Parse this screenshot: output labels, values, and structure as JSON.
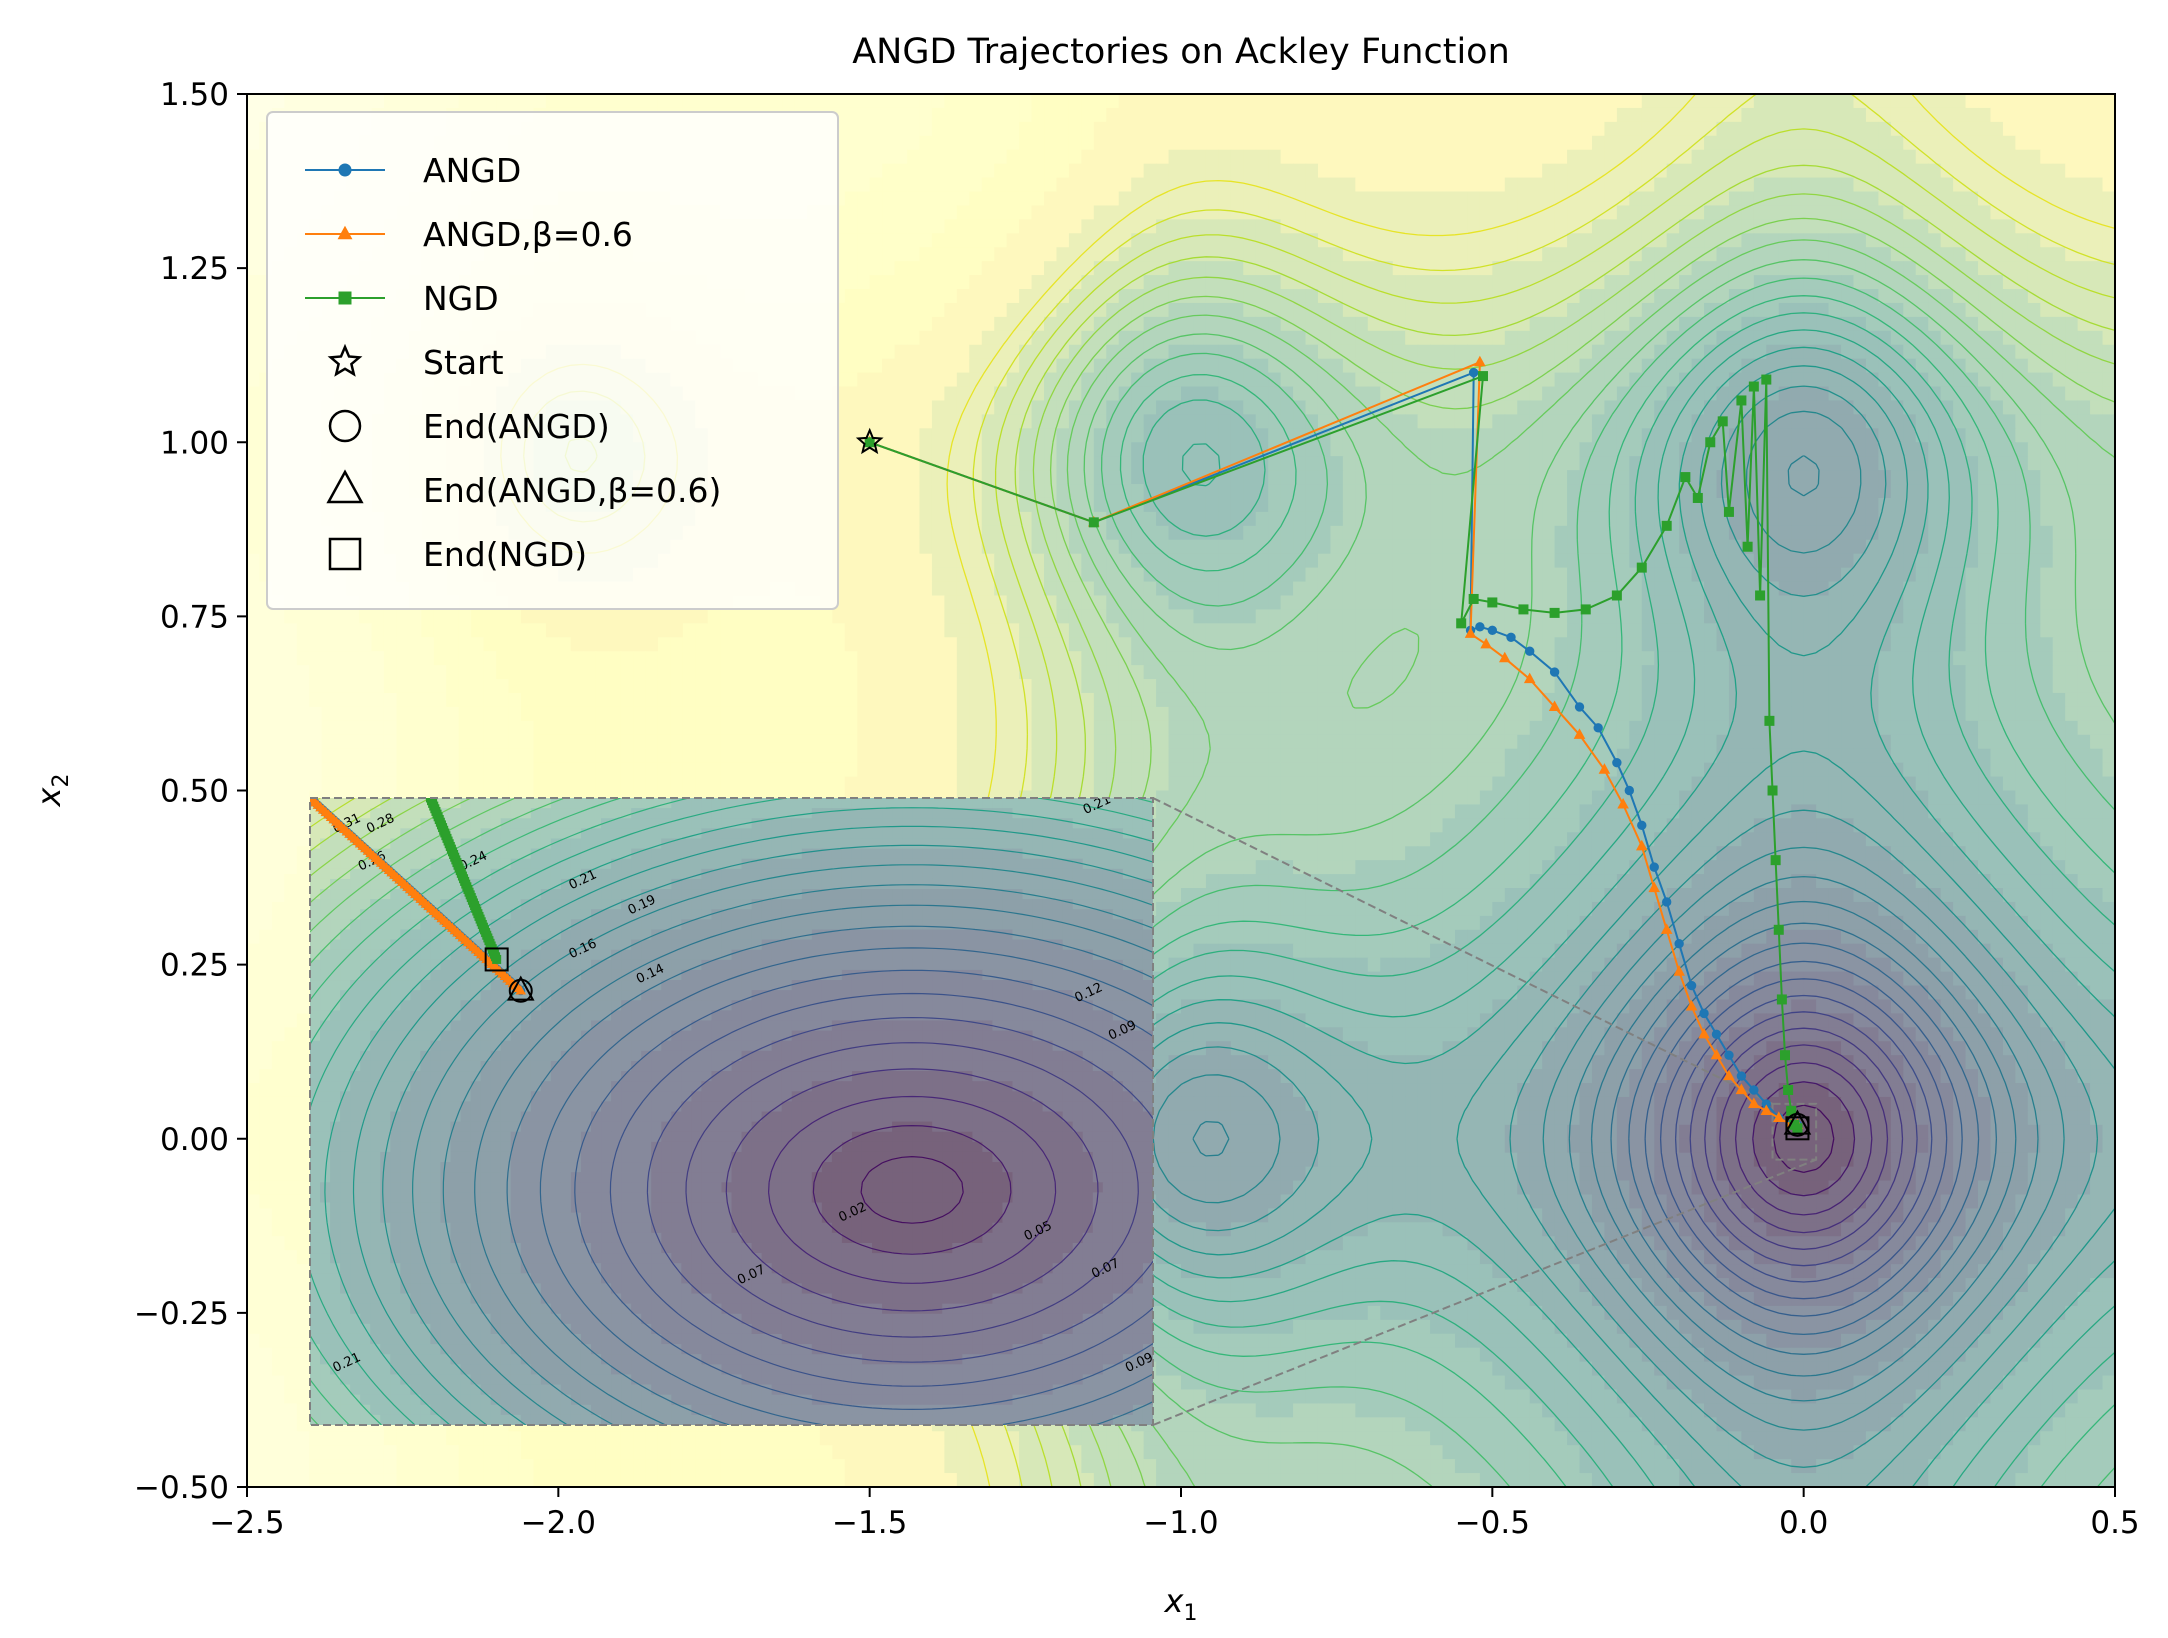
{
  "chart_data": {
    "type": "line",
    "title": "ANGD Trajectories on Ackley Function",
    "xlabel": "x",
    "xlabel_sub": "1",
    "ylabel": "x",
    "ylabel_sub": "2",
    "xlim": [
      -2.5,
      0.5
    ],
    "ylim": [
      -0.5,
      1.5
    ],
    "xticks": [
      -2.5,
      -2.0,
      -1.5,
      -1.0,
      -0.5,
      0.0,
      0.5
    ],
    "xtick_labels": [
      "−2.5",
      "−2.0",
      "−1.5",
      "−1.0",
      "−0.5",
      "0.0",
      "0.5"
    ],
    "yticks": [
      -0.5,
      -0.25,
      0.0,
      0.25,
      0.5,
      0.75,
      1.0,
      1.25,
      1.5
    ],
    "ytick_labels": [
      "−0.50",
      "−0.25",
      "0.00",
      "0.25",
      "0.50",
      "0.75",
      "1.00",
      "1.25",
      "1.50"
    ],
    "background": "Ackley function filled contours (viridis, alpha)",
    "series": [
      {
        "name": "ANGD",
        "color": "#1f77b4",
        "marker": "circle",
        "x": [
          -1.5,
          -1.14,
          -0.53,
          -0.535,
          -0.52,
          -0.5,
          -0.47,
          -0.44,
          -0.4,
          -0.36,
          -0.33,
          -0.3,
          -0.28,
          -0.26,
          -0.24,
          -0.22,
          -0.2,
          -0.18,
          -0.16,
          -0.14,
          -0.12,
          -0.1,
          -0.08,
          -0.06,
          -0.04,
          -0.02,
          -0.01
        ],
        "y": [
          1.0,
          0.885,
          1.1,
          0.73,
          0.735,
          0.73,
          0.72,
          0.7,
          0.67,
          0.62,
          0.59,
          0.54,
          0.5,
          0.45,
          0.39,
          0.34,
          0.28,
          0.22,
          0.18,
          0.15,
          0.12,
          0.09,
          0.07,
          0.05,
          0.03,
          0.02,
          0.02
        ]
      },
      {
        "name": "ANGD,β=0.6",
        "color": "#ff7f0e",
        "marker": "triangle",
        "x": [
          -1.5,
          -1.14,
          -0.52,
          -0.535,
          -0.51,
          -0.48,
          -0.44,
          -0.4,
          -0.36,
          -0.32,
          -0.29,
          -0.26,
          -0.24,
          -0.22,
          -0.2,
          -0.18,
          -0.16,
          -0.14,
          -0.12,
          -0.1,
          -0.08,
          -0.06,
          -0.04,
          -0.02,
          -0.01
        ],
        "y": [
          1.0,
          0.885,
          1.115,
          0.725,
          0.71,
          0.69,
          0.66,
          0.62,
          0.58,
          0.53,
          0.48,
          0.42,
          0.36,
          0.3,
          0.24,
          0.19,
          0.15,
          0.12,
          0.09,
          0.07,
          0.05,
          0.04,
          0.03,
          0.02,
          0.02
        ]
      },
      {
        "name": "NGD",
        "color": "#2ca02c",
        "marker": "square",
        "x": [
          -1.5,
          -1.14,
          -0.515,
          -0.55,
          -0.53,
          -0.5,
          -0.45,
          -0.4,
          -0.35,
          -0.3,
          -0.26,
          -0.22,
          -0.19,
          -0.17,
          -0.15,
          -0.13,
          -0.12,
          -0.1,
          -0.09,
          -0.08,
          -0.07,
          -0.06,
          -0.055,
          -0.05,
          -0.045,
          -0.04,
          -0.035,
          -0.03,
          -0.025,
          -0.02,
          -0.015,
          -0.01
        ],
        "y": [
          1.0,
          0.885,
          1.095,
          0.74,
          0.775,
          0.77,
          0.76,
          0.755,
          0.76,
          0.78,
          0.82,
          0.88,
          0.95,
          0.92,
          1.0,
          1.03,
          0.9,
          1.06,
          0.85,
          1.08,
          0.78,
          1.09,
          0.6,
          0.5,
          0.4,
          0.3,
          0.2,
          0.12,
          0.07,
          0.04,
          0.02,
          0.015
        ]
      }
    ],
    "start": {
      "name": "Start",
      "x": -1.5,
      "y": 1.0
    },
    "ends": [
      {
        "name": "End(ANGD)",
        "marker": "circle",
        "x": -0.01,
        "y": 0.02
      },
      {
        "name": "End(ANGD,β=0.6)",
        "marker": "triangle",
        "x": -0.01,
        "y": 0.02
      },
      {
        "name": "End(NGD)",
        "marker": "square",
        "x": -0.01,
        "y": 0.015
      }
    ],
    "legend": {
      "placement": "upper-left",
      "entries": [
        "ANGD",
        "ANGD,β=0.6",
        "NGD",
        "Start",
        "End(ANGD)",
        "End(ANGD,β=0.6)",
        "End(NGD)"
      ]
    },
    "inset": {
      "placement": "lower-left",
      "zoom_region": {
        "xlim": [
          -0.05,
          0.02
        ],
        "ylim": [
          -0.03,
          0.05
        ]
      },
      "contour_labels": [
        "0.31",
        "0.28",
        "0.26",
        "0.24",
        "0.21",
        "0.19",
        "0.16",
        "0.14",
        "0.12",
        "0.09",
        "0.21",
        "0.02",
        "0.05",
        "0.07",
        "0.07",
        "0.09",
        "0.21"
      ]
    }
  }
}
